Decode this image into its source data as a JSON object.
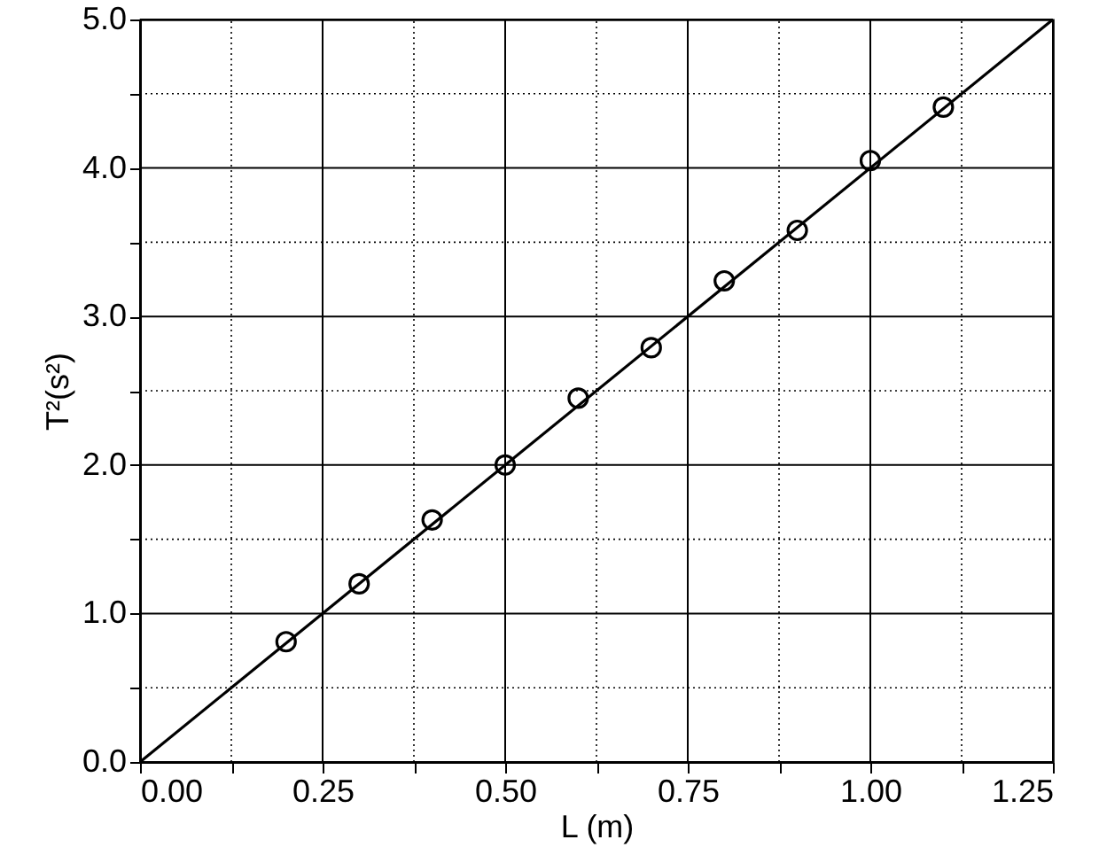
{
  "chart_data": {
    "type": "scatter",
    "xlabel": "L (m)",
    "ylabel": "T²(s²)",
    "xlim": [
      0,
      1.25
    ],
    "ylim": [
      0,
      5.0
    ],
    "xticks": [
      {
        "value": 0,
        "label": "0.00"
      },
      {
        "value": 0.125,
        "label": null
      },
      {
        "value": 0.25,
        "label": "0.25"
      },
      {
        "value": 0.375,
        "label": null
      },
      {
        "value": 0.5,
        "label": "0.50"
      },
      {
        "value": 0.625,
        "label": null
      },
      {
        "value": 0.75,
        "label": "0.75"
      },
      {
        "value": 0.875,
        "label": null
      },
      {
        "value": 1.0,
        "label": "1.00"
      },
      {
        "value": 1.125,
        "label": null
      },
      {
        "value": 1.25,
        "label": "1.25"
      }
    ],
    "yticks": [
      {
        "value": 0,
        "label": "0.0"
      },
      {
        "value": 0.5,
        "label": null
      },
      {
        "value": 1,
        "label": "1.0"
      },
      {
        "value": 1.5,
        "label": null
      },
      {
        "value": 2,
        "label": "2.0"
      },
      {
        "value": 2.5,
        "label": null
      },
      {
        "value": 3,
        "label": "3.0"
      },
      {
        "value": 3.5,
        "label": null
      },
      {
        "value": 4,
        "label": "4.0"
      },
      {
        "value": 4.5,
        "label": null
      },
      {
        "value": 5,
        "label": "5.0"
      }
    ],
    "grid": true,
    "x": [
      0.2,
      0.3,
      0.4,
      0.5,
      0.6,
      0.7,
      0.8,
      0.9,
      1.0,
      1.1
    ],
    "series": [
      {
        "color": "#000000",
        "marker": "circle",
        "values": [
          0.81,
          1.2,
          1.63,
          2.0,
          2.45,
          2.79,
          3.24,
          3.58,
          4.05,
          4.41
        ]
      },
      {
        "type": "line",
        "color": "#000000",
        "marker": "none",
        "x": [
          0,
          1.25
        ],
        "values": [
          0,
          5.0
        ]
      }
    ]
  }
}
